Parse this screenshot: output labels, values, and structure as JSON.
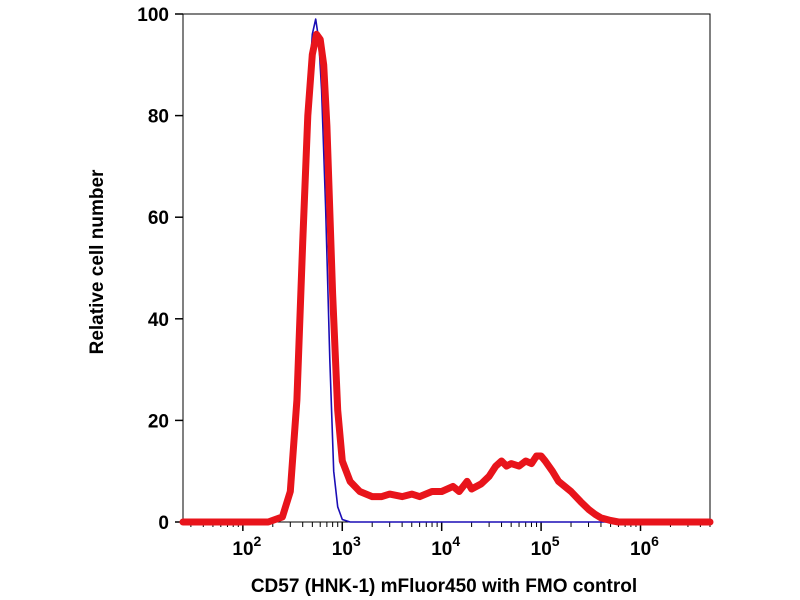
{
  "chart_data": {
    "type": "line",
    "title": "",
    "xlabel": "CD57 (HNK-1) mFluor450 with FMO control",
    "ylabel": "Relative cell number",
    "x_scale": "log",
    "xlim": [
      25,
      5000000
    ],
    "ylim": [
      0,
      100
    ],
    "y_ticks": [
      0,
      20,
      40,
      60,
      80,
      100
    ],
    "x_ticks": [
      {
        "value": 100,
        "base": "10",
        "exp": "2"
      },
      {
        "value": 1000,
        "base": "10",
        "exp": "3"
      },
      {
        "value": 10000,
        "base": "10",
        "exp": "4"
      },
      {
        "value": 100000,
        "base": "10",
        "exp": "5"
      },
      {
        "value": 1000000,
        "base": "10",
        "exp": "6"
      }
    ],
    "grid": false,
    "legend": "none",
    "series": [
      {
        "color": "#1a0db5",
        "x": [
          25,
          180,
          250,
          300,
          350,
          400,
          450,
          500,
          540,
          580,
          620,
          680,
          750,
          820,
          900,
          1000,
          1200,
          1500,
          5000000
        ],
        "y": [
          0,
          0,
          1,
          5,
          22,
          55,
          82,
          96,
          99,
          95,
          85,
          62,
          32,
          10,
          3,
          0.5,
          0,
          0,
          0
        ]
      },
      {
        "color": "#e8141b",
        "x": [
          25,
          180,
          250,
          300,
          350,
          400,
          450,
          500,
          550,
          600,
          650,
          700,
          800,
          900,
          1000,
          1200,
          1500,
          2000,
          2500,
          3000,
          4000,
          5000,
          6000,
          8000,
          10000,
          13000,
          15000,
          18000,
          20000,
          25000,
          30000,
          35000,
          40000,
          45000,
          50000,
          60000,
          70000,
          80000,
          90000,
          100000,
          110000,
          130000,
          150000,
          200000,
          250000,
          300000,
          350000,
          400000,
          500000,
          600000,
          800000,
          1000000,
          5000000
        ],
        "y": [
          0,
          0,
          1,
          6,
          24,
          55,
          80,
          92,
          96,
          95,
          90,
          78,
          45,
          22,
          12,
          8,
          6,
          5,
          5,
          5.5,
          5,
          5.5,
          5,
          6,
          6,
          7,
          6,
          8,
          6.5,
          7.5,
          9,
          11,
          12,
          11,
          11.5,
          11,
          12,
          11.5,
          13,
          13,
          12,
          10,
          8,
          6,
          4,
          2.5,
          1.5,
          0.8,
          0.3,
          0,
          0,
          0,
          0
        ]
      }
    ]
  }
}
